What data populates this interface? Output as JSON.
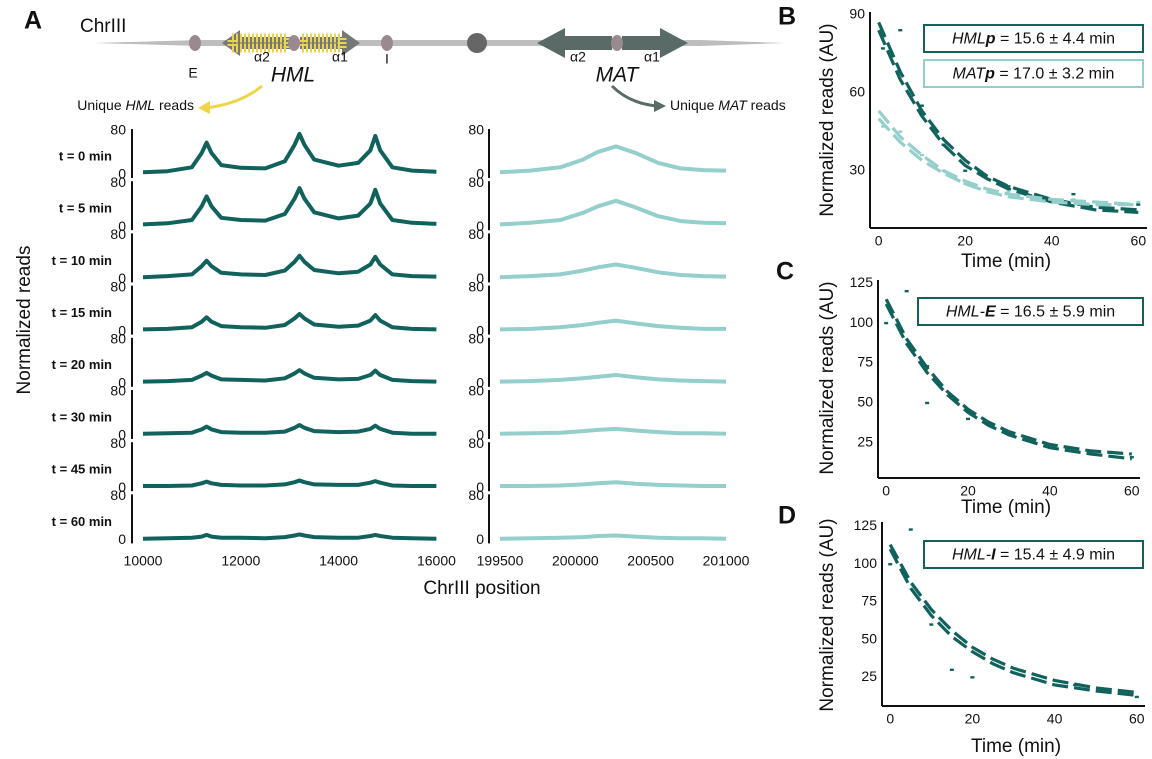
{
  "diagram": {
    "chromosome": "ChrIII",
    "sites": [
      "E",
      "I"
    ],
    "hml": {
      "name": "HML",
      "genes": [
        "α2",
        "α1"
      ]
    },
    "mat": {
      "name": "MAT",
      "genes": [
        "α2",
        "α1"
      ]
    },
    "reads": [
      {
        "prefix": "Unique ",
        "locus": "HML",
        "suffix": " reads"
      },
      {
        "prefix": "Unique ",
        "locus": "MAT",
        "suffix": " reads"
      }
    ]
  },
  "chart_data": [
    {
      "type": "ridgeline",
      "panel": "A",
      "xlabel": "ChrIII position",
      "ylabel": "Normalized reads",
      "x": [
        10000,
        10500,
        11000,
        11200,
        11300,
        11400,
        11600,
        12000,
        12500,
        12900,
        13100,
        13200,
        13300,
        13500,
        14000,
        14400,
        14650,
        14750,
        14850,
        15100,
        15500,
        16000
      ],
      "xlim": [
        10000,
        16400
      ],
      "xticks": [
        10000,
        12000,
        14000,
        16000
      ],
      "ylim": [
        0,
        80
      ],
      "yticks": [
        0,
        80
      ],
      "series": [
        {
          "name": "t = 0 min",
          "color": "#11625d",
          "values": [
            5,
            7,
            14,
            40,
            59,
            40,
            18,
            13,
            12,
            25,
            55,
            75,
            55,
            28,
            17,
            22,
            45,
            71,
            45,
            14,
            8,
            6
          ]
        },
        {
          "name": "t = 5 min",
          "color": "#11625d",
          "values": [
            5,
            7,
            13,
            38,
            56,
            38,
            17,
            13,
            12,
            24,
            52,
            71,
            52,
            27,
            16,
            21,
            43,
            68,
            43,
            13,
            8,
            6
          ]
        },
        {
          "name": "t = 10 min",
          "color": "#11625d",
          "values": [
            4,
            6,
            9,
            24,
            34,
            24,
            12,
            9,
            8,
            16,
            32,
            43,
            32,
            17,
            11,
            14,
            27,
            41,
            27,
            9,
            6,
            5
          ]
        },
        {
          "name": "t = 15 min",
          "color": "#11625d",
          "values": [
            4,
            5,
            8,
            18,
            26,
            18,
            10,
            8,
            7,
            12,
            24,
            32,
            24,
            13,
            9,
            11,
            20,
            30,
            20,
            8,
            5,
            4
          ]
        },
        {
          "name": "t = 20 min",
          "color": "#11625d",
          "values": [
            4,
            5,
            7,
            15,
            20,
            15,
            8,
            7,
            6,
            10,
            19,
            25,
            19,
            11,
            8,
            9,
            16,
            24,
            16,
            7,
            5,
            4
          ]
        },
        {
          "name": "t = 30 min",
          "color": "#11625d",
          "values": [
            4,
            5,
            6,
            12,
            17,
            12,
            7,
            6,
            6,
            8,
            15,
            20,
            15,
            9,
            7,
            8,
            13,
            19,
            13,
            6,
            4,
            4
          ]
        },
        {
          "name": "t = 45 min",
          "color": "#11625d",
          "values": [
            4,
            4,
            5,
            9,
            12,
            9,
            6,
            5,
            5,
            7,
            11,
            14,
            11,
            7,
            6,
            6,
            10,
            13,
            10,
            5,
            4,
            4
          ]
        },
        {
          "name": "t = 60 min",
          "color": "#11625d",
          "values": [
            3,
            4,
            5,
            7,
            10,
            7,
            5,
            5,
            4,
            6,
            9,
            11,
            9,
            6,
            5,
            5,
            8,
            10,
            8,
            5,
            4,
            3
          ]
        }
      ]
    },
    {
      "type": "ridgeline",
      "x": [
        199500,
        199700,
        199900,
        200050,
        200150,
        200270,
        200400,
        200550,
        200700,
        200850,
        201000
      ],
      "xlim": [
        199500,
        201000
      ],
      "xticks": [
        199500,
        200000,
        200500,
        201000
      ],
      "ylim": [
        0,
        80
      ],
      "yticks": [
        0,
        80
      ],
      "series": [
        {
          "color": "#94cfcc",
          "values": [
            5,
            8,
            14,
            28,
            42,
            52,
            40,
            22,
            12,
            9,
            8
          ]
        },
        {
          "color": "#94cfcc",
          "values": [
            5,
            8,
            13,
            26,
            38,
            48,
            36,
            20,
            11,
            8,
            7
          ]
        },
        {
          "color": "#94cfcc",
          "values": [
            4,
            6,
            9,
            16,
            22,
            27,
            21,
            13,
            8,
            6,
            5
          ]
        },
        {
          "color": "#94cfcc",
          "values": [
            4,
            5,
            8,
            12,
            16,
            20,
            15,
            10,
            7,
            5,
            5
          ]
        },
        {
          "color": "#94cfcc",
          "values": [
            4,
            5,
            7,
            10,
            13,
            16,
            12,
            8,
            6,
            5,
            4
          ]
        },
        {
          "color": "#94cfcc",
          "values": [
            4,
            5,
            6,
            9,
            11,
            13,
            10,
            7,
            5,
            5,
            4
          ]
        },
        {
          "color": "#94cfcc",
          "values": [
            4,
            4,
            5,
            7,
            9,
            11,
            8,
            6,
            5,
            4,
            4
          ]
        },
        {
          "color": "#94cfcc",
          "values": [
            3,
            4,
            5,
            6,
            8,
            9,
            7,
            5,
            4,
            4,
            3
          ]
        }
      ]
    },
    {
      "type": "scatter",
      "panel": "B",
      "xlabel": "Time (min)",
      "ylabel": "Normalized reads (AU)",
      "xlim": [
        -2,
        62
      ],
      "xticks": [
        0,
        20,
        40,
        60
      ],
      "ylim": [
        8,
        91
      ],
      "yticks": [
        30,
        60,
        90
      ],
      "series": [
        {
          "color": "#11625d",
          "x": [
            1,
            5,
            10,
            15,
            20,
            30,
            45,
            60
          ],
          "values": [
            77,
            84,
            55,
            40,
            30,
            24,
            21,
            17
          ]
        },
        {
          "color": "#94cfcc",
          "x": [
            1,
            5,
            10,
            15,
            20,
            30,
            45,
            60
          ],
          "values": [
            47,
            45,
            36,
            30,
            25,
            22,
            19,
            18
          ]
        }
      ],
      "fits": [
        {
          "color": "#11625d",
          "x": [
            0,
            5,
            10,
            15,
            20,
            25,
            30,
            40,
            50,
            60
          ],
          "values": [
            87,
            68,
            53,
            42,
            34,
            28,
            24,
            19,
            16,
            15
          ]
        },
        {
          "color": "#11625d",
          "x": [
            0,
            5,
            10,
            15,
            20,
            25,
            30,
            40,
            50,
            60
          ],
          "values": [
            84,
            65,
            51,
            40,
            32,
            27,
            23,
            18,
            15,
            14
          ]
        },
        {
          "color": "#94cfcc",
          "x": [
            0,
            5,
            10,
            15,
            20,
            25,
            30,
            40,
            50,
            60
          ],
          "values": [
            53,
            43,
            36,
            30,
            26,
            23,
            21,
            19,
            18,
            17
          ]
        },
        {
          "color": "#94cfcc",
          "x": [
            0,
            5,
            10,
            15,
            20,
            25,
            30,
            40,
            50,
            60
          ],
          "values": [
            50,
            41,
            34,
            29,
            25,
            22,
            20,
            18,
            17,
            17
          ]
        }
      ],
      "annotations": [
        {
          "locus": "HML",
          "element": "p",
          "rest": " = 15.6 ± 4.4 min",
          "color": "#11625d"
        },
        {
          "locus": "MAT",
          "element": "p",
          "rest": " = 17.0 ± 3.2 min",
          "color": "#94cfcc"
        }
      ]
    },
    {
      "type": "scatter",
      "panel": "C",
      "xlabel": "Time (min)",
      "ylabel": "Normalized reads (AU)",
      "xlim": [
        -2,
        62
      ],
      "xticks": [
        0,
        20,
        40,
        60
      ],
      "ylim": [
        3,
        127
      ],
      "yticks": [
        25,
        50,
        75,
        100,
        125
      ],
      "series": [
        {
          "color": "#11625d",
          "x": [
            0,
            5,
            10,
            10,
            20,
            30,
            45,
            60
          ],
          "values": [
            100,
            120,
            50,
            73,
            40,
            30,
            22,
            16
          ]
        }
      ],
      "fits": [
        {
          "color": "#11625d",
          "x": [
            0,
            5,
            10,
            15,
            20,
            25,
            30,
            40,
            50,
            60
          ],
          "values": [
            115,
            90,
            72,
            57,
            46,
            38,
            32,
            24,
            20,
            18
          ]
        },
        {
          "color": "#11625d",
          "x": [
            0,
            5,
            10,
            15,
            20,
            25,
            30,
            40,
            50,
            60
          ],
          "values": [
            112,
            87,
            69,
            55,
            44,
            36,
            30,
            22,
            18,
            15
          ]
        }
      ],
      "annotations": [
        {
          "locus": "HML-",
          "element": "E",
          "rest": " = 16.5 ± 5.9 min",
          "color": "#11625d"
        }
      ]
    },
    {
      "type": "scatter",
      "panel": "D",
      "xlabel": "Time (min)",
      "ylabel": "Normalized reads (AU)",
      "xlim": [
        -2,
        62
      ],
      "xticks": [
        0,
        20,
        40,
        60
      ],
      "ylim": [
        6,
        128
      ],
      "yticks": [
        25,
        50,
        75,
        100,
        125
      ],
      "series": [
        {
          "color": "#11625d",
          "x": [
            0,
            5,
            10,
            15,
            20,
            30,
            45,
            60
          ],
          "values": [
            100,
            123,
            60,
            30,
            25,
            28,
            20,
            12
          ]
        }
      ],
      "fits": [
        {
          "color": "#11625d",
          "x": [
            0,
            5,
            10,
            15,
            20,
            25,
            30,
            40,
            50,
            60
          ],
          "values": [
            113,
            88,
            70,
            56,
            45,
            37,
            31,
            23,
            18,
            15
          ]
        },
        {
          "color": "#11625d",
          "x": [
            0,
            5,
            10,
            15,
            20,
            25,
            30,
            40,
            50,
            60
          ],
          "values": [
            110,
            84,
            66,
            52,
            42,
            34,
            28,
            20,
            16,
            13
          ]
        }
      ],
      "annotations": [
        {
          "locus": "HML-",
          "element": "I",
          "rest": " = 15.4 ± 4.9 min",
          "color": "#11625d"
        }
      ]
    }
  ]
}
